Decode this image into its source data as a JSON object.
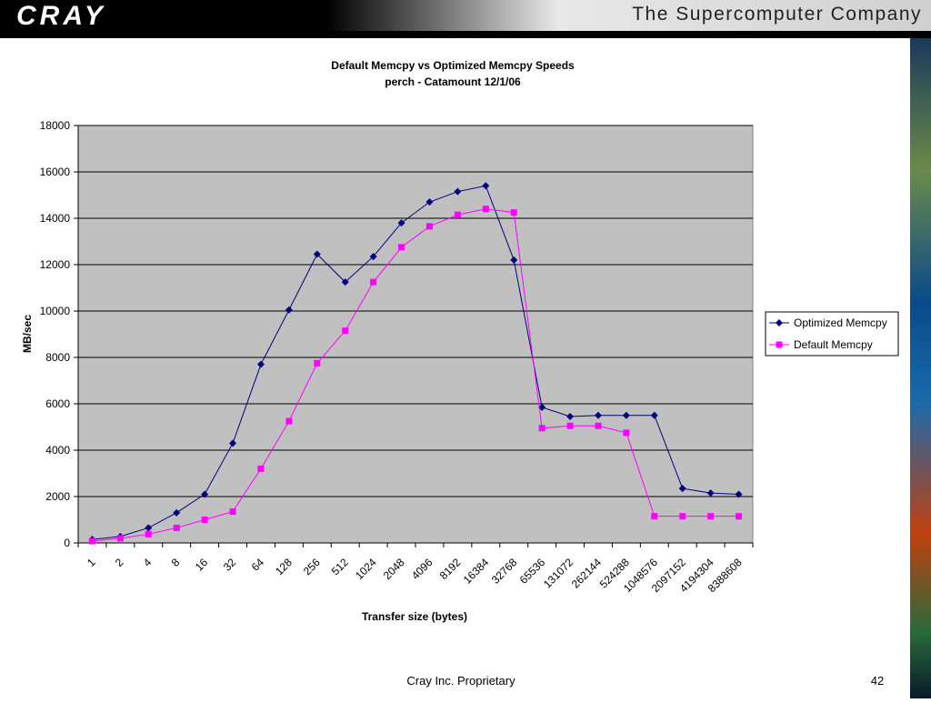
{
  "header": {
    "logo": "CRAY",
    "tagline": "The Supercomputer Company"
  },
  "footer": {
    "text": "Cray Inc. Proprietary",
    "page": "42"
  },
  "chart_data": {
    "type": "line",
    "title": "Default Memcpy vs Optimized Memcpy Speeds",
    "subtitle": "perch - Catamount 12/1/06",
    "x_label": "Transfer size (bytes)",
    "y_label": "MB/sec",
    "categories": [
      "1",
      "2",
      "4",
      "8",
      "16",
      "32",
      "64",
      "128",
      "256",
      "512",
      "1024",
      "2048",
      "4096",
      "8192",
      "16384",
      "32768",
      "65536",
      "131072",
      "262144",
      "524288",
      "1048576",
      "2097152",
      "4194304",
      "8388608"
    ],
    "series": [
      {
        "name": "Optimized Memcpy",
        "color": "#000080",
        "marker": "diamond",
        "values": [
          150,
          280,
          650,
          1300,
          2100,
          4300,
          7700,
          10050,
          12450,
          11250,
          12350,
          13800,
          14700,
          15150,
          15400,
          12200,
          5850,
          5450,
          5500,
          5500,
          5500,
          2350,
          2150,
          2100
        ]
      },
      {
        "name": "Default Memcpy",
        "color": "#ff00ff",
        "marker": "square",
        "values": [
          80,
          200,
          380,
          650,
          1000,
          1350,
          3200,
          5250,
          7750,
          9150,
          11250,
          12750,
          13650,
          14150,
          14400,
          14250,
          4950,
          5050,
          5050,
          4750,
          1150,
          1150,
          1150,
          1150
        ]
      }
    ],
    "ylim": [
      0,
      18000
    ],
    "yticks": [
      0,
      2000,
      4000,
      6000,
      8000,
      10000,
      12000,
      14000,
      16000,
      18000
    ],
    "grid": true,
    "legend": "right",
    "plot_background": "#c0c0c0"
  }
}
